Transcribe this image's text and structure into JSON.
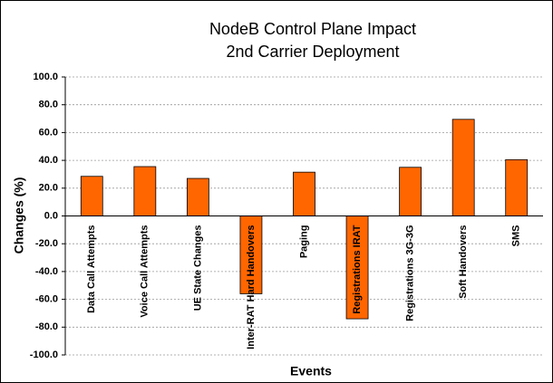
{
  "chart_data": {
    "type": "bar",
    "title": [
      "NodeB Control Plane Impact",
      "2nd Carrier Deployment"
    ],
    "xlabel": "Events",
    "ylabel": "Changes (%)",
    "categories": [
      "Data Call Attempts",
      "Voice Call Attempts",
      "UE State Changes",
      "Inter-RAT Hard Handovers",
      "Paging",
      "Registrations IRAT",
      "Registrations 3G-3G",
      "Soft Handovers",
      "SMS"
    ],
    "values": [
      28.5,
      35.5,
      27,
      -56,
      31.5,
      -74,
      35,
      69.5,
      40.5
    ],
    "color": "#ff6600",
    "ylim": [
      -100,
      100
    ],
    "yticks": [
      {
        "value": -100,
        "label": "-100.0"
      },
      {
        "value": -80,
        "label": "-80.0"
      },
      {
        "value": -60,
        "label": "-60.0"
      },
      {
        "value": -40,
        "label": "-40.0"
      },
      {
        "value": -20,
        "label": "-20.0"
      },
      {
        "value": 0,
        "label": "0.0"
      },
      {
        "value": 20,
        "label": "20.0"
      },
      {
        "value": 40,
        "label": "40.0"
      },
      {
        "value": 60,
        "label": "60.0"
      },
      {
        "value": 80,
        "label": "80.0"
      },
      {
        "value": 100,
        "label": "100.0"
      }
    ],
    "grid": true
  }
}
